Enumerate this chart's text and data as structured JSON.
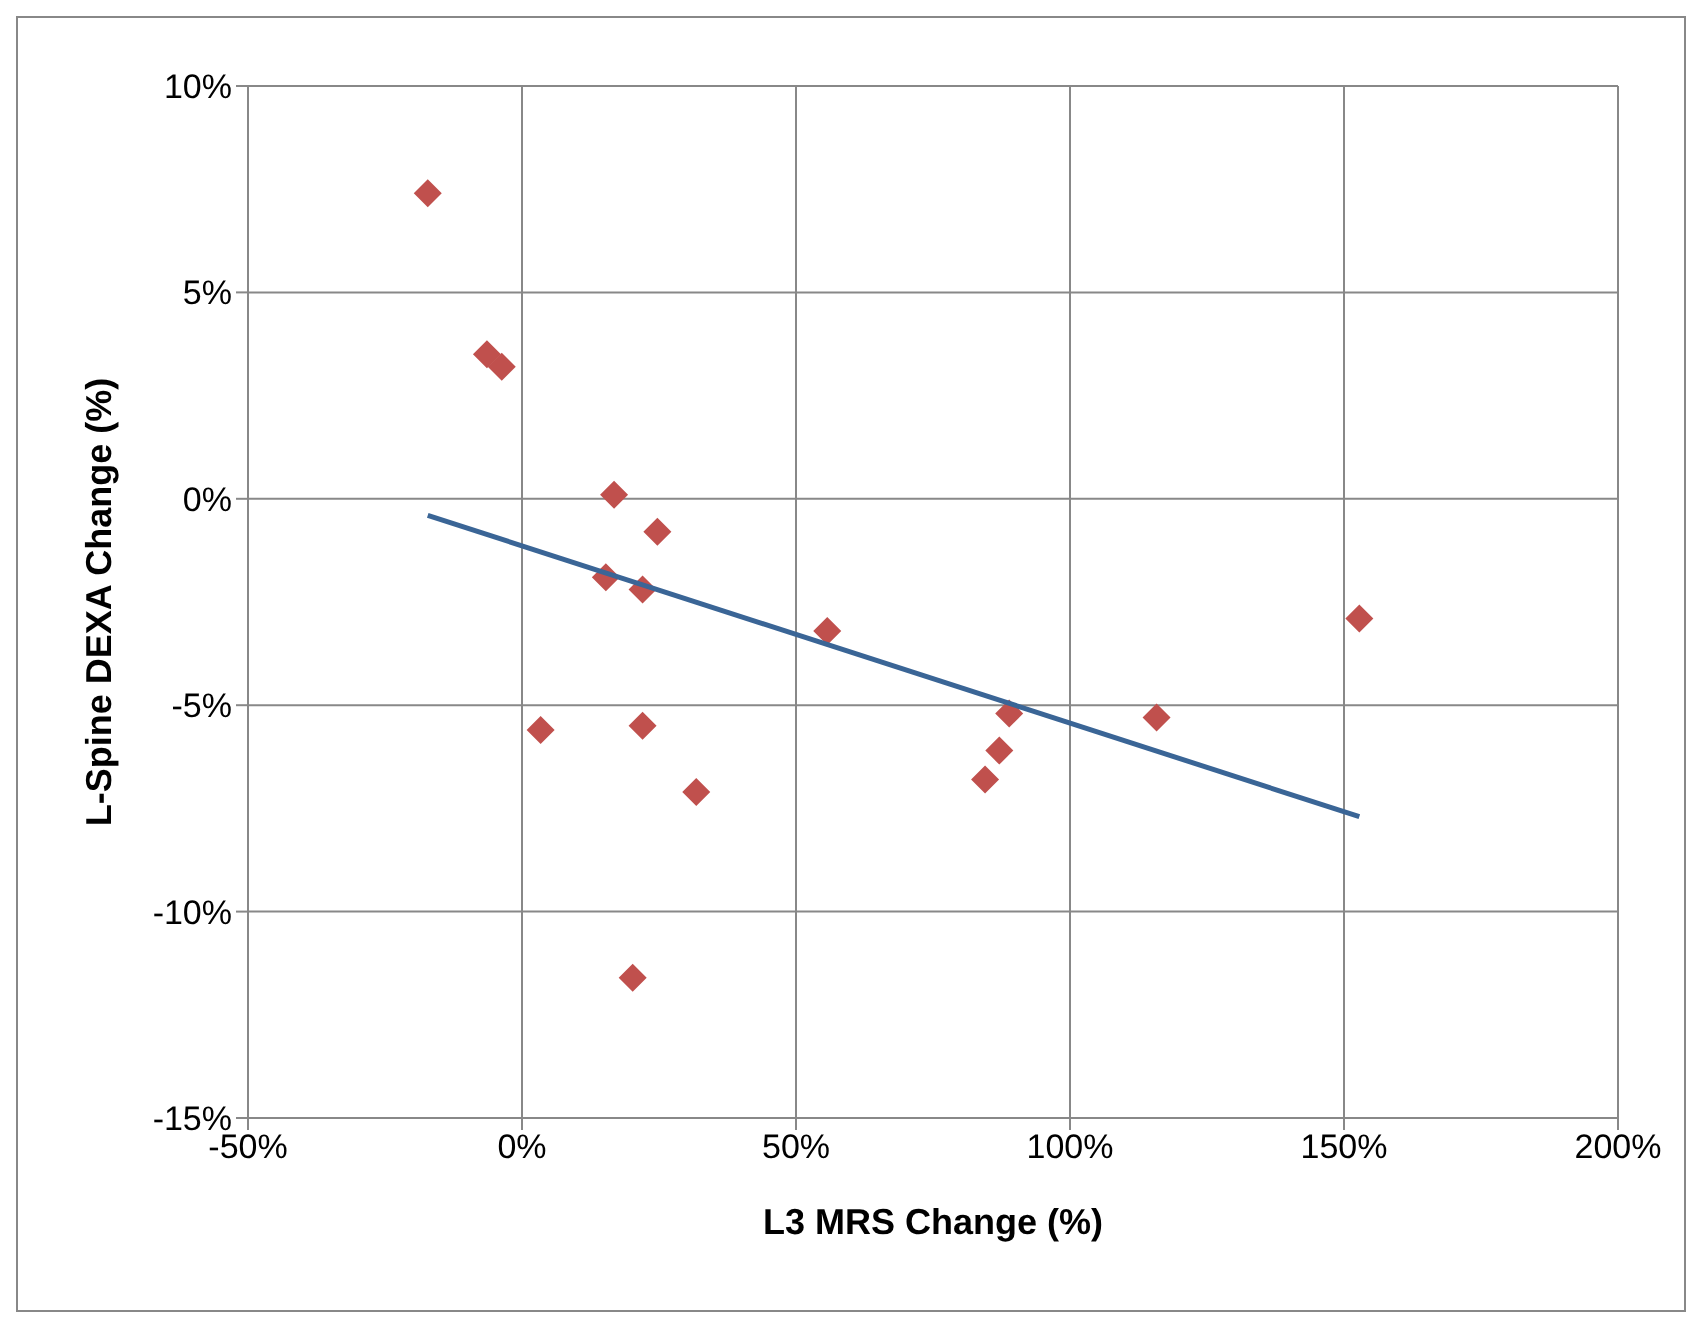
{
  "chart_data": {
    "type": "scatter",
    "xlabel": "L3 MRS Change (%)",
    "ylabel": "L-Spine DEXA Change (%)",
    "xlim": [
      -50,
      200
    ],
    "ylim": [
      -15,
      10
    ],
    "xticks": [
      {
        "value": -50,
        "label": "-50%"
      },
      {
        "value": 0,
        "label": "0%"
      },
      {
        "value": 50,
        "label": "50%"
      },
      {
        "value": 100,
        "label": "100%"
      },
      {
        "value": 150,
        "label": "150%"
      },
      {
        "value": 200,
        "label": "200%"
      }
    ],
    "yticks": [
      {
        "value": -15,
        "label": "-15%"
      },
      {
        "value": -10,
        "label": "-10%"
      },
      {
        "value": -5,
        "label": "-5%"
      },
      {
        "value": 0,
        "label": "0%"
      },
      {
        "value": 5,
        "label": "5%"
      },
      {
        "value": 10,
        "label": "10%"
      }
    ],
    "grid": true,
    "marker": "diamond",
    "series": [
      {
        "type": "scatter",
        "color": "#c0504d",
        "x": [
          -17.2,
          -6.4,
          -3.7,
          16.8,
          15.3,
          24.7,
          22.0,
          3.4,
          22.0,
          31.8,
          20.2,
          55.7,
          88.9,
          84.5,
          87.1,
          115.8,
          152.8
        ],
        "values": [
          7.4,
          3.5,
          3.2,
          0.1,
          -1.9,
          -0.8,
          -2.2,
          -5.6,
          -5.5,
          -7.1,
          -11.6,
          -3.2,
          -5.2,
          -6.8,
          -6.1,
          -5.3,
          -2.9
        ]
      },
      {
        "type": "line",
        "color": "#3a6596",
        "x": [
          -17.2,
          152.8
        ],
        "values": [
          -0.4,
          -7.7
        ],
        "marker": "none"
      }
    ]
  }
}
